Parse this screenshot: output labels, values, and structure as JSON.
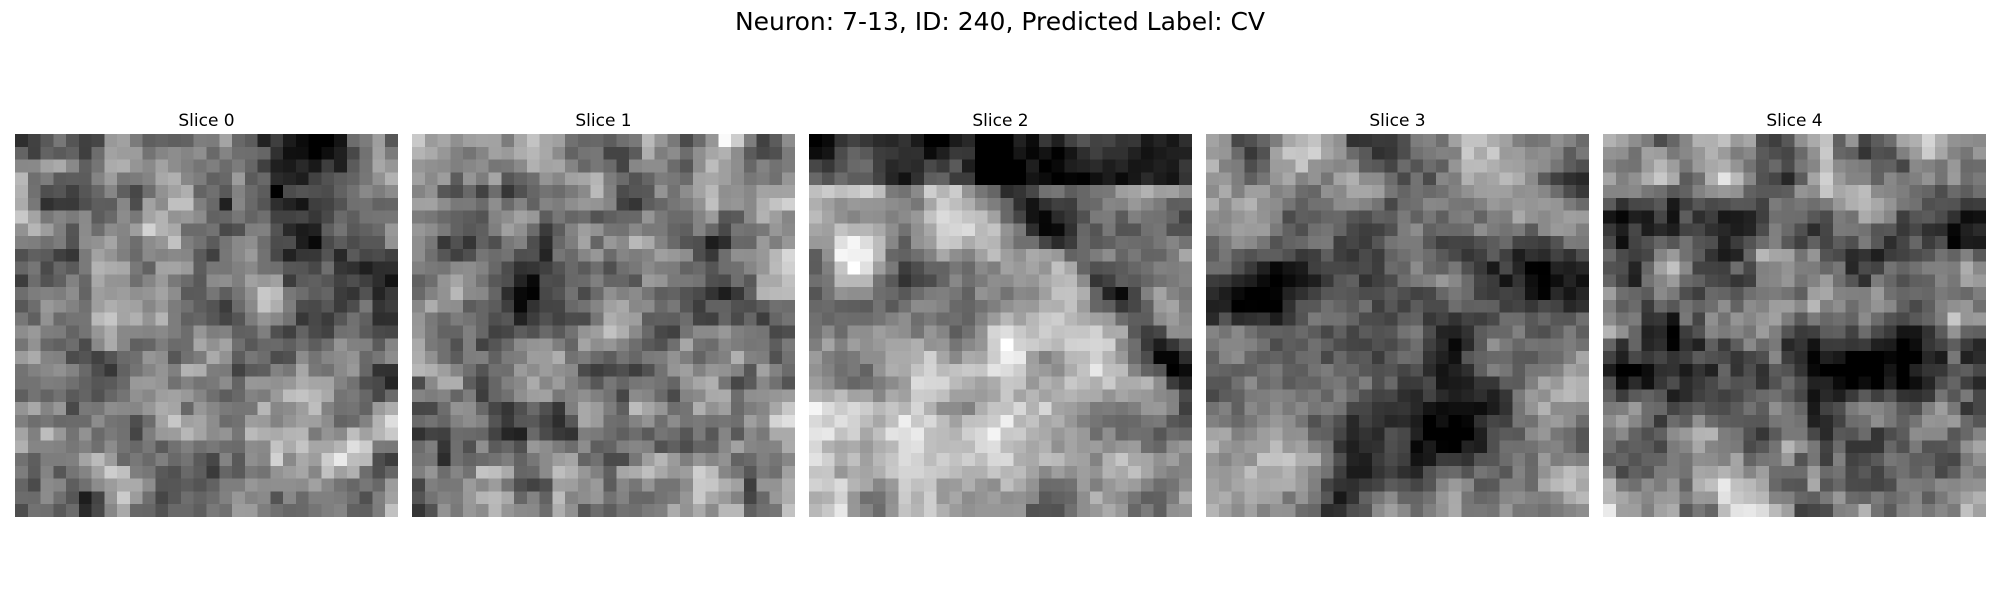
{
  "figure": {
    "title": "Neuron: 7-13, ID: 240, Predicted Label: CV"
  },
  "panels": [
    {
      "title": "Slice 0",
      "image": "grayscale-microscopy-texture-noisy"
    },
    {
      "title": "Slice 1",
      "image": "grayscale-microscopy-texture-noisy"
    },
    {
      "title": "Slice 2",
      "image": "grayscale-microscopy-texture-diagonal-dark-band"
    },
    {
      "title": "Slice 3",
      "image": "grayscale-microscopy-texture-dark-cross"
    },
    {
      "title": "Slice 4",
      "image": "grayscale-microscopy-texture-dark-horizontal-band"
    }
  ],
  "colormap": "gray"
}
